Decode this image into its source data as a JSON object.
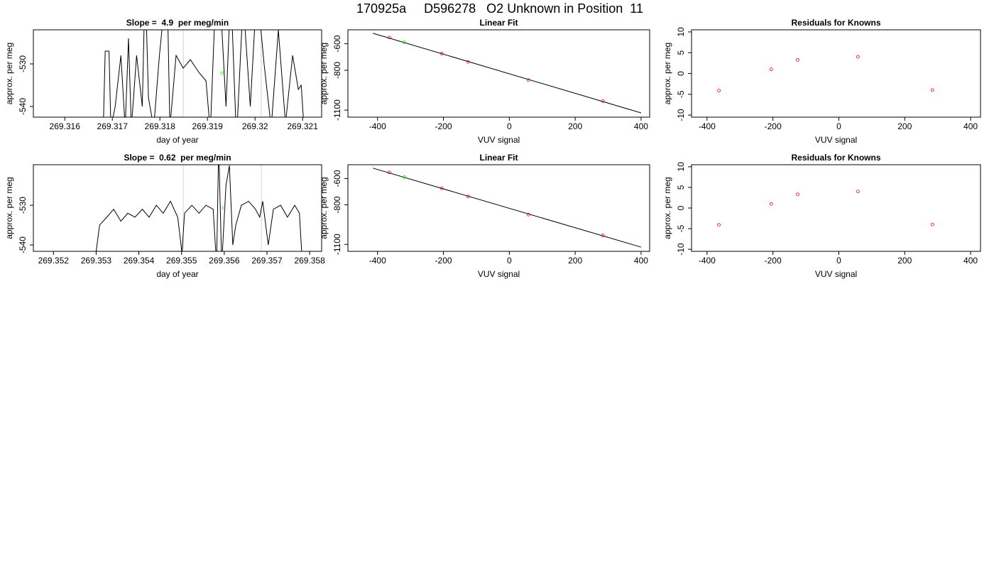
{
  "title": "170925a     D596278   O2 Unknown in Position  11",
  "chart_data": [
    {
      "type": "line",
      "title": "Slope =  4.9  per meg/min",
      "x_label": "day of year",
      "y_label": "approx. per meg",
      "xlim": [
        269.31534,
        269.3214
      ],
      "ylim": [
        -542.5,
        -522
      ],
      "xticks": [
        269.316,
        269.317,
        269.318,
        269.319,
        269.32,
        269.321
      ],
      "yticks": [
        -530,
        -540
      ],
      "lines": [
        {
          "color": "#000000",
          "x": [
            269.31681,
            269.31685,
            269.31693,
            269.31697,
            269.31706,
            269.31718,
            269.31727,
            269.31734,
            269.3174,
            269.31751,
            269.31763,
            269.31769,
            269.31776,
            269.31787,
            269.31799,
            269.31815,
            269.31821,
            269.31834,
            269.31849,
            269.31864,
            269.31882,
            269.31897,
            269.31906,
            269.31915,
            269.31927,
            269.31939,
            269.31949,
            269.31961,
            269.31975,
            269.3199,
            269.32004,
            269.32019,
            269.32034,
            269.32049,
            269.32064,
            269.32079,
            269.32091,
            269.32097,
            269.32103
          ],
          "values": [
            -545,
            -527,
            -527,
            -545,
            -540,
            -528,
            -545,
            -524,
            -545,
            -528,
            -540,
            -510,
            -538,
            -545,
            -528,
            -510,
            -545,
            -528,
            -531,
            -529,
            -532,
            -534,
            -546,
            -520,
            -515,
            -540,
            -512,
            -548,
            -515,
            -540,
            -512,
            -530,
            -545,
            -522,
            -544,
            -528,
            -536,
            -535,
            -545
          ]
        }
      ],
      "points": [
        {
          "color": "#00ff00",
          "x": [
            269.31931
          ],
          "values": [
            -532.2
          ]
        }
      ],
      "vlines": {
        "color": "#d3d3d3",
        "x": [
          269.31849,
          269.32013
        ]
      }
    },
    {
      "type": "scatter",
      "title": "Linear Fit",
      "x_label": "VUV signal",
      "y_label": "approx. per meg",
      "xlim": [
        -490,
        426
      ],
      "ylim": [
        -1153,
        -495
      ],
      "xticks": [
        -400,
        -200,
        0,
        200,
        400
      ],
      "yticks": [
        -600,
        -800,
        -1100
      ],
      "lines": [
        {
          "color": "#000000",
          "x": [
            -414,
            400
          ],
          "values": [
            -521,
            -1121
          ]
        }
      ],
      "points": [
        {
          "color": "#ff0000",
          "x": [
            -364,
            -205,
            -125,
            58,
            284
          ],
          "values": [
            -553,
            -674,
            -737,
            -874,
            -1032
          ]
        },
        {
          "color": "#00ff00",
          "x": [
            -319
          ],
          "values": [
            -589
          ]
        }
      ]
    },
    {
      "type": "scatter",
      "title": "Residuals for Knowns",
      "x_label": "VUV signal",
      "y_label": "approx. per meg",
      "xlim": [
        -447,
        430
      ],
      "ylim": [
        -10.5,
        10.5
      ],
      "xticks": [
        -400,
        -200,
        0,
        200,
        400
      ],
      "yticks": [
        -10,
        -5,
        0,
        5,
        10
      ],
      "points": [
        {
          "color": "#ff0000",
          "x": [
            -364,
            -205,
            -125,
            58,
            284
          ],
          "values": [
            -4.1,
            1.0,
            3.3,
            4.0,
            -4.0
          ]
        }
      ]
    },
    {
      "type": "line",
      "title": "Slope =  0.62  per meg/min",
      "x_label": "day of year",
      "y_label": "approx. per meg",
      "xlim": [
        269.35153,
        269.35828
      ],
      "ylim": [
        -541.6,
        -519.8
      ],
      "xticks": [
        269.352,
        269.353,
        269.354,
        269.355,
        269.356,
        269.357,
        269.358
      ],
      "yticks": [
        -530,
        -540
      ],
      "lines": [
        {
          "color": "#000000",
          "x": [
            269.35296,
            269.35308,
            269.35325,
            269.35341,
            269.35358,
            269.35374,
            269.35391,
            269.35408,
            269.35424,
            269.35441,
            269.35457,
            269.35474,
            269.35491,
            269.35501,
            269.35507,
            269.35524,
            269.35541,
            269.35557,
            269.35574,
            269.35582,
            269.35587,
            269.35594,
            269.35604,
            269.35612,
            269.3562,
            269.35627,
            269.3564,
            269.35657,
            269.35673,
            269.35683,
            269.3569,
            269.35703,
            269.35715,
            269.35732,
            269.35748,
            269.35765,
            269.35776,
            269.35783
          ],
          "values": [
            -545,
            -535,
            -533,
            -531,
            -534,
            -532,
            -533,
            -531,
            -533,
            -530,
            -532,
            -529,
            -533,
            -542,
            -532,
            -530,
            -532,
            -530,
            -531,
            -545,
            -515,
            -545,
            -525,
            -520,
            -540,
            -535,
            -530,
            -529,
            -531,
            -533,
            -529,
            -540,
            -531,
            -530,
            -533,
            -530,
            -532,
            -545
          ]
        }
      ],
      "points": [
        {
          "color": "#00ff00",
          "x": [
            269.35599
          ],
          "values": [
            -530.7
          ]
        }
      ],
      "vlines": {
        "color": "#d3d3d3",
        "x": [
          269.35504,
          269.35687
        ]
      }
    },
    {
      "type": "scatter",
      "title": "Linear Fit",
      "x_label": "VUV signal",
      "y_label": "approx. per meg",
      "xlim": [
        -490,
        426
      ],
      "ylim": [
        -1153,
        -495
      ],
      "xticks": [
        -400,
        -200,
        0,
        200,
        400
      ],
      "yticks": [
        -600,
        -800,
        -1100
      ],
      "lines": [
        {
          "color": "#000000",
          "x": [
            -414,
            400
          ],
          "values": [
            -521,
            -1121
          ]
        }
      ],
      "points": [
        {
          "color": "#ff0000",
          "x": [
            -364,
            -205,
            -125,
            58,
            284
          ],
          "values": [
            -553,
            -674,
            -737,
            -874,
            -1032
          ]
        },
        {
          "color": "#00ff00",
          "x": [
            -319
          ],
          "values": [
            -589
          ]
        }
      ]
    },
    {
      "type": "scatter",
      "title": "Residuals for Knowns",
      "x_label": "VUV signal",
      "y_label": "approx. per meg",
      "xlim": [
        -447,
        430
      ],
      "ylim": [
        -10.5,
        10.5
      ],
      "xticks": [
        -400,
        -200,
        0,
        200,
        400
      ],
      "yticks": [
        -10,
        -5,
        0,
        5,
        10
      ],
      "points": [
        {
          "color": "#ff0000",
          "x": [
            -364,
            -205,
            -125,
            58,
            284
          ],
          "values": [
            -4.1,
            1.0,
            3.3,
            4.0,
            -4.0
          ]
        }
      ]
    }
  ]
}
